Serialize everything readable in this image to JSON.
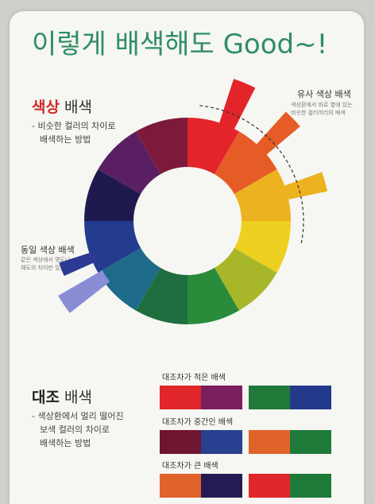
{
  "title": "이렇게 배색해도 Good~!",
  "hue": {
    "heading_part1": "색상",
    "heading_part2": " 배색",
    "desc_line1": "- 비슷한 컬러의 차이로",
    "desc_line2": "배색하는 방법"
  },
  "analogous": {
    "title": "유사 색상 배색",
    "desc_line1": "색상환에서 바로 옆에 있는",
    "desc_line2": "비슷한 컬러끼리의 배색"
  },
  "monochrome": {
    "title": "동일 색상 배색",
    "desc_line1": "같은 색상에서 명도나",
    "desc_line2": "채도의 차이만 있는 배색"
  },
  "contrast": {
    "heading_part1": "대조",
    "heading_part2": " 배색",
    "desc_line1": "- 색상환에서 멀리 떨어진",
    "desc_line2": "보색 컬러의 차이로",
    "desc_line3": "배색하는 방법"
  },
  "swatch_groups": [
    {
      "label": "대조차가 적은 배색",
      "pairs": [
        [
          "#e0262b",
          "#7b1f5e"
        ],
        [
          "#1f7a3a",
          "#233a8a"
        ]
      ]
    },
    {
      "label": "대조차가 중간인 배색",
      "pairs": [
        [
          "#6e1530",
          "#27408f"
        ],
        [
          "#e0642a",
          "#1f7a3a"
        ]
      ]
    },
    {
      "label": "대조차가 큰 배색",
      "pairs": [
        [
          "#e0642a",
          "#231c52"
        ],
        [
          "#e0262b",
          "#1f7a3a"
        ]
      ]
    }
  ],
  "wheel_colors": [
    "#e3242b",
    "#e55c26",
    "#edb21f",
    "#eed020",
    "#a8b72a",
    "#2a8c3b",
    "#1f6e3f",
    "#1d6a8a",
    "#243c8f",
    "#1f1a4e",
    "#5a1f63",
    "#7d1a3c"
  ],
  "colors": {
    "title": "#2f8e63",
    "accent": "#d12a2a"
  }
}
